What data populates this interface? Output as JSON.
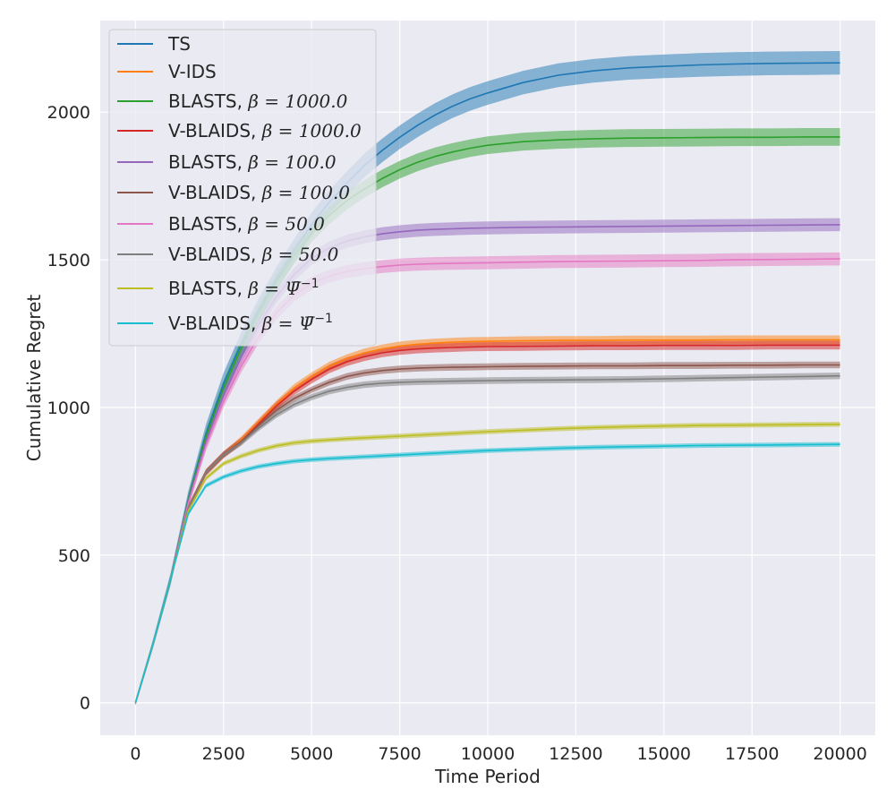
{
  "chart_data": {
    "type": "line",
    "title": "",
    "xlabel": "Time Period",
    "ylabel": "Cumulative Regret",
    "xlim": [
      -1000,
      21000
    ],
    "ylim": [
      -110,
      2310
    ],
    "x_ticks": [
      0,
      2500,
      5000,
      7500,
      10000,
      12500,
      15000,
      17500,
      20000
    ],
    "x_tick_labels": [
      "0",
      "2500",
      "5000",
      "7500",
      "10000",
      "12500",
      "15000",
      "17500",
      "20000"
    ],
    "y_ticks": [
      0,
      500,
      1000,
      1500,
      2000
    ],
    "y_tick_labels": [
      "0",
      "500",
      "1000",
      "1500",
      "2000"
    ],
    "grid": true,
    "legend_position": "top-left",
    "x": [
      0,
      500,
      1000,
      1500,
      2000,
      2500,
      3000,
      3500,
      4000,
      4500,
      5000,
      5500,
      6000,
      6500,
      7000,
      7500,
      8000,
      8500,
      9000,
      9500,
      10000,
      11000,
      12000,
      13000,
      14000,
      15000,
      16000,
      17000,
      18000,
      19000,
      20000
    ],
    "series": [
      {
        "name": "TS",
        "legend_main": "TS",
        "legend_math": "",
        "legend_sup": "",
        "color": "#1f77b4",
        "band": 40,
        "values": [
          0,
          200,
          420,
          690,
          910,
          1080,
          1215,
          1330,
          1435,
          1530,
          1620,
          1695,
          1760,
          1820,
          1870,
          1915,
          1955,
          1990,
          2020,
          2045,
          2065,
          2100,
          2125,
          2140,
          2150,
          2155,
          2160,
          2163,
          2165,
          2166,
          2167
        ]
      },
      {
        "name": "V-IDS",
        "legend_main": "V-IDS",
        "legend_math": "",
        "legend_sup": "",
        "color": "#ff7f0e",
        "band": 15,
        "values": [
          0,
          200,
          420,
          660,
          780,
          840,
          890,
          950,
          1010,
          1065,
          1105,
          1140,
          1165,
          1185,
          1198,
          1208,
          1214,
          1218,
          1221,
          1223,
          1224,
          1226,
          1227,
          1227,
          1228,
          1228,
          1228,
          1229,
          1229,
          1229,
          1229
        ]
      },
      {
        "name": "BLASTS, β = 1000.0",
        "legend_main": "BLASTS, ",
        "legend_math": "β = 1000.0",
        "legend_sup": "",
        "color": "#2ca02c",
        "band": 30,
        "values": [
          0,
          200,
          420,
          685,
          900,
          1065,
          1200,
          1320,
          1425,
          1515,
          1590,
          1650,
          1700,
          1740,
          1775,
          1805,
          1830,
          1850,
          1865,
          1878,
          1888,
          1900,
          1906,
          1910,
          1912,
          1913,
          1914,
          1915,
          1915,
          1916,
          1916
        ]
      },
      {
        "name": "V-BLAIDS, β = 1000.0",
        "legend_main": "V-BLAIDS, ",
        "legend_math": "β = 1000.0",
        "legend_sup": "",
        "color": "#d62728",
        "band": 15,
        "values": [
          0,
          200,
          420,
          660,
          780,
          840,
          885,
          945,
          1005,
          1055,
          1095,
          1130,
          1155,
          1172,
          1185,
          1193,
          1198,
          1201,
          1203,
          1205,
          1206,
          1207,
          1208,
          1209,
          1209,
          1210,
          1210,
          1210,
          1211,
          1211,
          1211
        ]
      },
      {
        "name": "BLASTS, β = 100.0",
        "legend_main": "BLASTS, ",
        "legend_math": "β = 100.0",
        "legend_sup": "",
        "color": "#9467bd",
        "band": 22,
        "values": [
          0,
          200,
          420,
          680,
          885,
          1040,
          1170,
          1280,
          1375,
          1450,
          1505,
          1540,
          1563,
          1578,
          1588,
          1595,
          1600,
          1603,
          1605,
          1607,
          1608,
          1610,
          1611,
          1612,
          1613,
          1614,
          1615,
          1616,
          1617,
          1618,
          1619
        ]
      },
      {
        "name": "V-BLAIDS, β = 100.0",
        "legend_main": "V-BLAIDS, ",
        "legend_math": "β = 100.0",
        "legend_sup": "",
        "color": "#8c564b",
        "band": 12,
        "values": [
          0,
          200,
          420,
          660,
          780,
          840,
          885,
          940,
          990,
          1030,
          1060,
          1085,
          1105,
          1117,
          1125,
          1130,
          1133,
          1135,
          1136,
          1137,
          1138,
          1139,
          1140,
          1141,
          1141,
          1142,
          1142,
          1143,
          1143,
          1144,
          1144
        ]
      },
      {
        "name": "BLASTS, β = 50.0",
        "legend_main": "BLASTS, ",
        "legend_math": "β = 50.0",
        "legend_sup": "",
        "color": "#e377c2",
        "band": 22,
        "values": [
          0,
          200,
          420,
          675,
          870,
          1020,
          1140,
          1240,
          1320,
          1380,
          1420,
          1445,
          1460,
          1470,
          1477,
          1482,
          1485,
          1487,
          1488,
          1489,
          1490,
          1492,
          1494,
          1495,
          1496,
          1497,
          1498,
          1500,
          1501,
          1502,
          1503
        ]
      },
      {
        "name": "V-BLAIDS, β = 50.0",
        "legend_main": "V-BLAIDS, ",
        "legend_math": "β = 50.0",
        "legend_sup": "",
        "color": "#7f7f7f",
        "band": 12,
        "values": [
          0,
          200,
          420,
          660,
          780,
          840,
          880,
          930,
          975,
          1010,
          1035,
          1055,
          1068,
          1077,
          1082,
          1085,
          1087,
          1088,
          1089,
          1090,
          1091,
          1092,
          1093,
          1094,
          1095,
          1097,
          1099,
          1101,
          1103,
          1105,
          1107
        ]
      },
      {
        "name": "BLASTS, β = Ψ̄⁻¹",
        "legend_main": "BLASTS, ",
        "legend_math": "β = Ψ̄",
        "legend_sup": "−1",
        "color": "#bcbd22",
        "band": 10,
        "values": [
          0,
          200,
          420,
          650,
          760,
          810,
          835,
          855,
          870,
          880,
          886,
          890,
          894,
          897,
          900,
          903,
          906,
          909,
          912,
          915,
          918,
          923,
          928,
          932,
          935,
          937,
          939,
          940,
          941,
          942,
          943
        ]
      },
      {
        "name": "V-BLAIDS, β = Ψ̄⁻¹",
        "legend_main": "V-BLAIDS, ",
        "legend_math": "β = Ψ̄",
        "legend_sup": "−1",
        "color": "#17becf",
        "band": 10,
        "values": [
          0,
          200,
          420,
          640,
          735,
          765,
          785,
          800,
          810,
          818,
          823,
          827,
          830,
          833,
          836,
          839,
          842,
          845,
          848,
          851,
          854,
          858,
          862,
          865,
          867,
          869,
          871,
          872,
          873,
          874,
          875
        ]
      }
    ]
  }
}
